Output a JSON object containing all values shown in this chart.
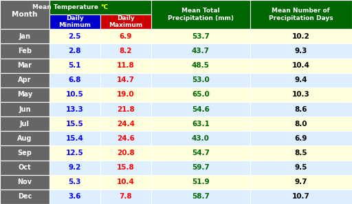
{
  "months": [
    "Jan",
    "Feb",
    "Mar",
    "Apr",
    "May",
    "Jun",
    "Jul",
    "Aug",
    "Sep",
    "Oct",
    "Nov",
    "Dec"
  ],
  "daily_min": [
    2.5,
    2.8,
    5.1,
    6.8,
    10.5,
    13.3,
    15.5,
    15.4,
    12.5,
    9.2,
    5.3,
    3.6
  ],
  "daily_max": [
    6.9,
    8.2,
    11.8,
    14.7,
    19.0,
    21.8,
    24.4,
    24.6,
    20.8,
    15.8,
    10.4,
    7.8
  ],
  "precipitation": [
    53.7,
    43.7,
    48.5,
    53.0,
    65.0,
    54.6,
    63.1,
    43.0,
    54.7,
    59.7,
    51.9,
    58.7
  ],
  "precip_days": [
    10.2,
    9.3,
    10.4,
    9.4,
    10.3,
    8.6,
    8.0,
    6.9,
    8.5,
    9.5,
    9.7,
    10.7
  ],
  "header_bg": "#006600",
  "header_text": "#ffffff",
  "subheader_min_bg": "#0000cc",
  "subheader_max_bg": "#cc0000",
  "subheader_text": "#ffffff",
  "month_bg": "#666666",
  "month_text": "#ffffff",
  "row_bg_odd": "#ffffdd",
  "row_bg_even": "#ddeeff",
  "min_text_color": "#0000ff",
  "max_text_color": "#ff0000",
  "precip_text_color": "#006600",
  "precip_days_text_color": "#000000",
  "border_color": "#ffffff",
  "title_temp_color": "#ffff00"
}
